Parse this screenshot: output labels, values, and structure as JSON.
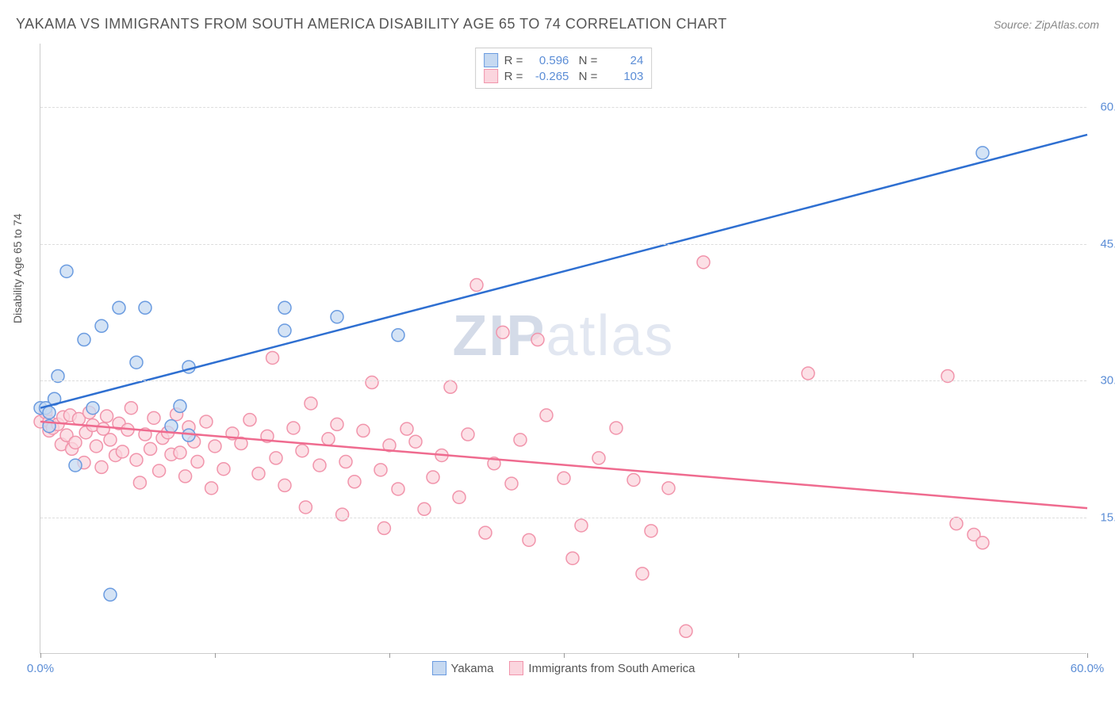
{
  "title": "YAKAMA VS IMMIGRANTS FROM SOUTH AMERICA DISABILITY AGE 65 TO 74 CORRELATION CHART",
  "source": "Source: ZipAtlas.com",
  "ylabel": "Disability Age 65 to 74",
  "watermark_prefix": "ZIP",
  "watermark_suffix": "atlas",
  "chart": {
    "type": "scatter",
    "xlim": [
      0,
      60
    ],
    "ylim": [
      0,
      67
    ],
    "xtick_labels": [
      "0.0%",
      "60.0%"
    ],
    "xtick_label_positions": [
      0,
      60
    ],
    "xtick_marks": [
      0,
      10,
      20,
      30,
      40,
      50,
      60
    ],
    "ytick_labels": [
      "15.0%",
      "30.0%",
      "45.0%",
      "60.0%"
    ],
    "ytick_positions": [
      15,
      30,
      45,
      60
    ],
    "grid_color": "#dddddd",
    "background_color": "#ffffff",
    "axis_color": "#cccccc",
    "label_color": "#5b8dd6",
    "marker_radius": 8,
    "marker_stroke_width": 1.5,
    "line_width": 2.5
  },
  "series": [
    {
      "name": "Yakama",
      "fill": "#c6d9f1",
      "stroke": "#6a9be0",
      "line_color": "#2e6fd1",
      "R": "0.596",
      "N": "24",
      "reg_line": {
        "x1": 0,
        "y1": 27,
        "x2": 60,
        "y2": 57
      },
      "points": [
        [
          0,
          27
        ],
        [
          0.3,
          27
        ],
        [
          0.5,
          26.5
        ],
        [
          0.5,
          25
        ],
        [
          0.8,
          28
        ],
        [
          1,
          30.5
        ],
        [
          1.5,
          42
        ],
        [
          2,
          20.7
        ],
        [
          2.5,
          34.5
        ],
        [
          3,
          27
        ],
        [
          3.5,
          36
        ],
        [
          4,
          6.5
        ],
        [
          4.5,
          38
        ],
        [
          5.5,
          32
        ],
        [
          6,
          38
        ],
        [
          7.5,
          25
        ],
        [
          8,
          27.2
        ],
        [
          8.5,
          31.5
        ],
        [
          8.5,
          24
        ],
        [
          14,
          35.5
        ],
        [
          14,
          38
        ],
        [
          17,
          37
        ],
        [
          20.5,
          35
        ],
        [
          54,
          55
        ]
      ]
    },
    {
      "name": "Immigrants from South America",
      "fill": "#fbd5de",
      "stroke": "#f194ab",
      "line_color": "#ef6b8f",
      "R": "-0.265",
      "N": "103",
      "reg_line": {
        "x1": 0,
        "y1": 25.5,
        "x2": 60,
        "y2": 16
      },
      "points": [
        [
          0,
          25.5
        ],
        [
          0.3,
          26.5
        ],
        [
          0.5,
          24.5
        ],
        [
          0.5,
          25.5
        ],
        [
          0.7,
          24.8
        ],
        [
          1,
          25.2
        ],
        [
          1.2,
          23
        ],
        [
          1.3,
          26
        ],
        [
          1.5,
          24
        ],
        [
          1.7,
          26.2
        ],
        [
          1.8,
          22.5
        ],
        [
          2,
          23.2
        ],
        [
          2.2,
          25.8
        ],
        [
          2.5,
          21
        ],
        [
          2.6,
          24.3
        ],
        [
          2.8,
          26.5
        ],
        [
          3,
          25.1
        ],
        [
          3.2,
          22.8
        ],
        [
          3.5,
          20.5
        ],
        [
          3.6,
          24.7
        ],
        [
          3.8,
          26.1
        ],
        [
          4,
          23.5
        ],
        [
          4.3,
          21.8
        ],
        [
          4.5,
          25.3
        ],
        [
          4.7,
          22.2
        ],
        [
          5,
          24.6
        ],
        [
          5.2,
          27
        ],
        [
          5.5,
          21.3
        ],
        [
          5.7,
          18.8
        ],
        [
          6,
          24.1
        ],
        [
          6.3,
          22.5
        ],
        [
          6.5,
          25.9
        ],
        [
          6.8,
          20.1
        ],
        [
          7,
          23.7
        ],
        [
          7.3,
          24.3
        ],
        [
          7.5,
          21.9
        ],
        [
          7.8,
          26.3
        ],
        [
          8,
          22.1
        ],
        [
          8.3,
          19.5
        ],
        [
          8.5,
          24.9
        ],
        [
          8.8,
          23.3
        ],
        [
          9,
          21.1
        ],
        [
          9.5,
          25.5
        ],
        [
          9.8,
          18.2
        ],
        [
          10,
          22.8
        ],
        [
          10.5,
          20.3
        ],
        [
          11,
          24.2
        ],
        [
          11.5,
          23.1
        ],
        [
          12,
          25.7
        ],
        [
          12.5,
          19.8
        ],
        [
          13,
          23.9
        ],
        [
          13.3,
          32.5
        ],
        [
          13.5,
          21.5
        ],
        [
          14,
          18.5
        ],
        [
          14.5,
          24.8
        ],
        [
          15,
          22.3
        ],
        [
          15.2,
          16.1
        ],
        [
          15.5,
          27.5
        ],
        [
          16,
          20.7
        ],
        [
          16.5,
          23.6
        ],
        [
          17,
          25.2
        ],
        [
          17.3,
          15.3
        ],
        [
          17.5,
          21.1
        ],
        [
          18,
          18.9
        ],
        [
          18.5,
          24.5
        ],
        [
          19,
          29.8
        ],
        [
          19.5,
          20.2
        ],
        [
          19.7,
          13.8
        ],
        [
          20,
          22.9
        ],
        [
          20.5,
          18.1
        ],
        [
          21,
          24.7
        ],
        [
          21.5,
          23.3
        ],
        [
          22,
          15.9
        ],
        [
          22.5,
          19.4
        ],
        [
          23,
          21.8
        ],
        [
          23.5,
          29.3
        ],
        [
          24,
          17.2
        ],
        [
          24.5,
          24.1
        ],
        [
          25,
          40.5
        ],
        [
          25.5,
          13.3
        ],
        [
          26,
          20.9
        ],
        [
          26.5,
          35.3
        ],
        [
          27,
          18.7
        ],
        [
          27.5,
          23.5
        ],
        [
          28,
          12.5
        ],
        [
          28.5,
          34.5
        ],
        [
          29,
          26.2
        ],
        [
          30,
          19.3
        ],
        [
          30.5,
          10.5
        ],
        [
          31,
          14.1
        ],
        [
          32,
          21.5
        ],
        [
          33,
          24.8
        ],
        [
          34,
          19.1
        ],
        [
          34.5,
          8.8
        ],
        [
          35,
          13.5
        ],
        [
          36,
          18.2
        ],
        [
          37,
          2.5
        ],
        [
          38,
          43
        ],
        [
          44,
          30.8
        ],
        [
          52.5,
          14.3
        ],
        [
          53.5,
          13.1
        ],
        [
          54,
          12.2
        ],
        [
          52,
          30.5
        ]
      ]
    }
  ],
  "legend_bottom": {
    "items": [
      "Yakama",
      "Immigrants from South America"
    ]
  },
  "stats_legend": {
    "R_label": "R =",
    "N_label": "N ="
  }
}
